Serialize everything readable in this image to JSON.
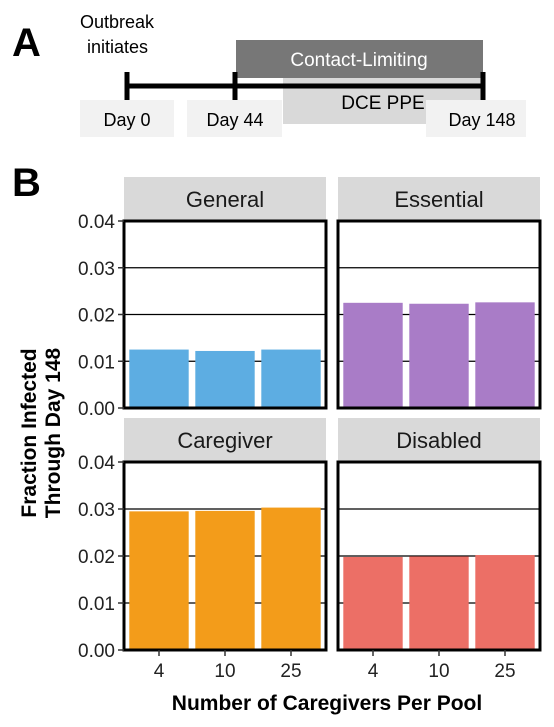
{
  "panel_a": {
    "letter": "A",
    "outbreak_label_line1": "Outbreak",
    "outbreak_label_line2": "initiates",
    "contact_limiting_label": "Contact-Limiting",
    "dce_ppe_label": "DCE PPE",
    "day_labels": [
      "Day 0",
      "Day 44",
      "Day 148"
    ],
    "colors": {
      "contact_band": "#777777",
      "dce_band": "#d9d9d9",
      "day_box": "#f2f2f2",
      "line": "#000000"
    }
  },
  "panel_b": {
    "letter": "B"
  },
  "chart_data": {
    "type": "bar",
    "facets": [
      "General",
      "Essential",
      "Caregiver",
      "Disabled"
    ],
    "categories": [
      "4",
      "10",
      "25"
    ],
    "series": [
      {
        "facet": "General",
        "color": "#5dade2",
        "values": [
          0.0125,
          0.0122,
          0.0125
        ]
      },
      {
        "facet": "Essential",
        "color": "#a97cc7",
        "values": [
          0.0225,
          0.0223,
          0.0226
        ]
      },
      {
        "facet": "Caregiver",
        "color": "#f39c1a",
        "values": [
          0.0295,
          0.0296,
          0.0303
        ]
      },
      {
        "facet": "Disabled",
        "color": "#ec6f66",
        "values": [
          0.0198,
          0.0199,
          0.0202
        ]
      }
    ],
    "ylim": [
      0,
      0.04
    ],
    "yticks": [
      "0.00",
      "0.01",
      "0.02",
      "0.03",
      "0.04"
    ],
    "ytick_values": [
      0,
      0.01,
      0.02,
      0.03,
      0.04
    ],
    "ylabel_line1": "Fraction Infected",
    "ylabel_line2": "Through Day 148",
    "xlabel": "Number of Caregivers Per Pool",
    "grid": "horizontal-major",
    "strip_color": "#d9d9d9"
  }
}
